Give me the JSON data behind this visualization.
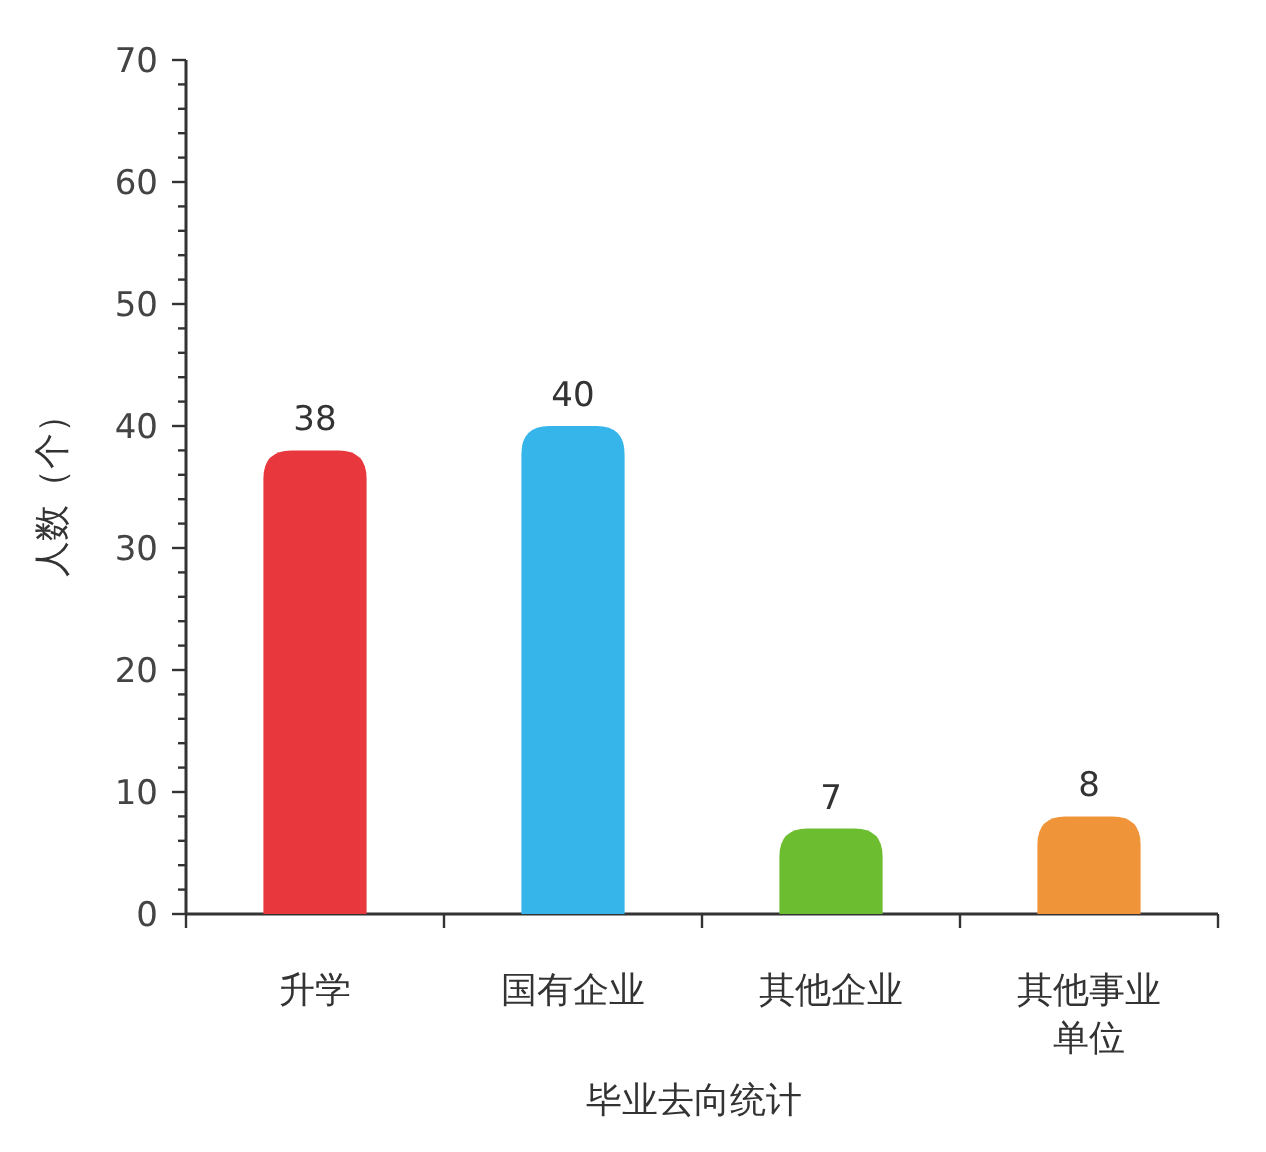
{
  "chart_data": {
    "type": "bar",
    "categories": [
      "升学",
      "国有企业",
      "其他企业",
      "其他事业单位"
    ],
    "values": [
      38,
      40,
      7,
      8
    ],
    "colors": [
      "#e8383d",
      "#35b5e9",
      "#6cbd2f",
      "#f0943a"
    ],
    "xlabel": "毕业去向统计",
    "ylabel": "人数（个）",
    "ylim": [
      0,
      70
    ],
    "yticks": [
      0,
      {
        "value": 2,
        "label": null
      },
      {
        "value": 4,
        "label": null
      },
      {
        "value": 6,
        "label": null
      },
      {
        "value": 8,
        "label": null
      },
      10,
      {
        "value": 12,
        "label": null
      },
      {
        "value": 14,
        "label": null
      },
      {
        "value": 16,
        "label": null
      },
      {
        "value": 18,
        "label": null
      },
      20,
      {
        "value": 22,
        "label": null
      },
      {
        "value": 24,
        "label": null
      },
      {
        "value": 26,
        "label": null
      },
      {
        "value": 28,
        "label": null
      },
      30,
      {
        "value": 32,
        "label": null
      },
      {
        "value": 34,
        "label": null
      },
      {
        "value": 36,
        "label": null
      },
      {
        "value": 38,
        "label": null
      },
      40,
      {
        "value": 42,
        "label": null
      },
      {
        "value": 44,
        "label": null
      },
      {
        "value": 46,
        "label": null
      },
      {
        "value": 48,
        "label": null
      },
      50,
      {
        "value": 52,
        "label": null
      },
      {
        "value": 54,
        "label": null
      },
      {
        "value": 56,
        "label": null
      },
      {
        "value": 58,
        "label": null
      },
      60,
      {
        "value": 62,
        "label": null
      },
      {
        "value": 64,
        "label": null
      },
      {
        "value": 66,
        "label": null
      },
      {
        "value": 68,
        "label": null
      },
      70
    ],
    "data_labels": true
  }
}
